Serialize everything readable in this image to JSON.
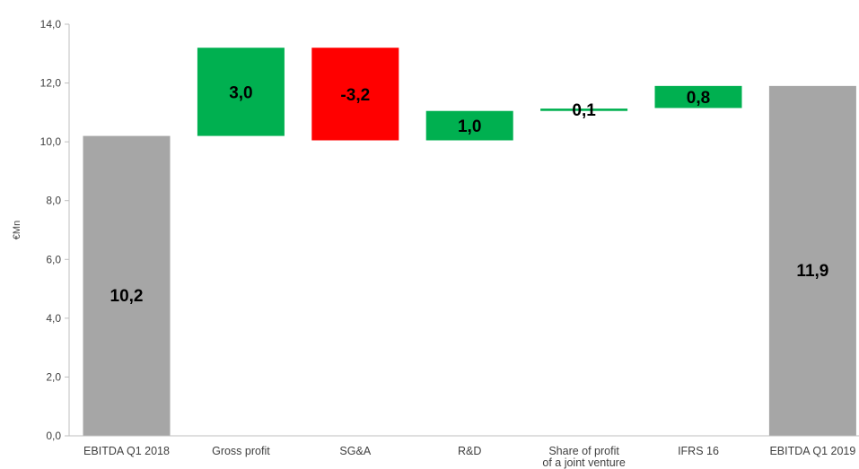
{
  "chart_data": {
    "type": "bar",
    "subtype": "waterfall",
    "title": "",
    "xlabel": "",
    "ylabel": "€Mn",
    "ylim": [
      0,
      14
    ],
    "yticks": [
      0,
      2,
      4,
      6,
      8,
      10,
      12,
      14
    ],
    "ytick_labels": [
      "0,0",
      "2,0",
      "4,0",
      "6,0",
      "8,0",
      "10,0",
      "12,0",
      "14,0"
    ],
    "grid": false,
    "legend": "none",
    "categories": [
      [
        "EBITDA Q1 2018"
      ],
      [
        "Gross profit"
      ],
      [
        "SG&A"
      ],
      [
        "R&D"
      ],
      [
        "Share of profit",
        "of a joint venture"
      ],
      [
        "IFRS 16"
      ],
      [
        "EBITDA Q1 2019"
      ]
    ],
    "bars": [
      {
        "kind": "total",
        "start": 0,
        "end": 10.2,
        "label": "10,2",
        "color": "#a6a6a6"
      },
      {
        "kind": "increase",
        "start": 10.2,
        "end": 13.2,
        "label": "3,0",
        "color": "#00b050"
      },
      {
        "kind": "decrease",
        "start": 13.2,
        "end": 10.05,
        "label": "-3,2",
        "color": "#ff0000"
      },
      {
        "kind": "increase",
        "start": 10.05,
        "end": 11.05,
        "label": "1,0",
        "color": "#00b050"
      },
      {
        "kind": "increase",
        "start": 11.05,
        "end": 11.13,
        "label": "0,1",
        "color": "#00b050"
      },
      {
        "kind": "increase",
        "start": 11.15,
        "end": 11.9,
        "label": "0,8",
        "color": "#00b050"
      },
      {
        "kind": "total",
        "start": 0,
        "end": 11.9,
        "label": "11,9",
        "color": "#a6a6a6"
      }
    ],
    "axis_color": "#bfbfbf"
  }
}
